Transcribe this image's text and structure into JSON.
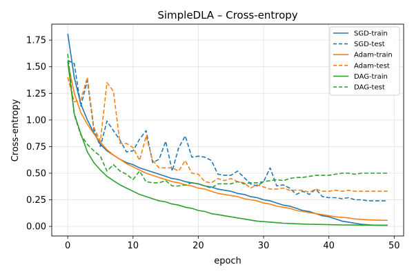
{
  "chart_data": {
    "type": "line",
    "title": "SimpleDLA – Cross-entropy",
    "xlabel": "epoch",
    "ylabel": "Cross-entropy",
    "xlim": [
      -2.45,
      51.45
    ],
    "ylim": [
      -0.09,
      1.9
    ],
    "xticks": [
      0,
      10,
      20,
      30,
      40,
      50
    ],
    "yticks": [
      0.0,
      0.25,
      0.5,
      0.75,
      1.0,
      1.25,
      1.5,
      1.75
    ],
    "ytick_labels": [
      "0.00",
      "0.25",
      "0.50",
      "0.75",
      "1.00",
      "1.25",
      "1.50",
      "1.75"
    ],
    "grid": true,
    "legend_position": "top-right",
    "x": [
      0,
      1,
      2,
      3,
      4,
      5,
      6,
      7,
      8,
      9,
      10,
      11,
      12,
      13,
      14,
      15,
      16,
      17,
      18,
      19,
      20,
      21,
      22,
      23,
      24,
      25,
      26,
      27,
      28,
      29,
      30,
      31,
      32,
      33,
      34,
      35,
      36,
      37,
      38,
      39,
      40,
      41,
      42,
      43,
      44,
      45,
      46,
      47,
      48,
      49
    ],
    "series": [
      {
        "name": "SGD-train",
        "color": "#1f77b4",
        "dash": "solid",
        "values": [
          1.81,
          1.4,
          1.15,
          1.0,
          0.88,
          0.77,
          0.71,
          0.67,
          0.63,
          0.6,
          0.58,
          0.55,
          0.53,
          0.51,
          0.49,
          0.47,
          0.45,
          0.44,
          0.42,
          0.41,
          0.4,
          0.38,
          0.37,
          0.35,
          0.34,
          0.33,
          0.31,
          0.3,
          0.28,
          0.27,
          0.25,
          0.24,
          0.22,
          0.2,
          0.19,
          0.17,
          0.15,
          0.14,
          0.12,
          0.1,
          0.09,
          0.07,
          0.05,
          0.04,
          0.03,
          0.02,
          0.015,
          0.012,
          0.01,
          0.01
        ]
      },
      {
        "name": "SGD-test",
        "color": "#1f77b4",
        "dash": "dashed",
        "values": [
          1.56,
          1.53,
          1.13,
          1.37,
          0.91,
          0.75,
          0.99,
          0.9,
          0.81,
          0.7,
          0.71,
          0.82,
          0.9,
          0.6,
          0.63,
          0.8,
          0.52,
          0.74,
          0.85,
          0.65,
          0.66,
          0.65,
          0.62,
          0.49,
          0.48,
          0.48,
          0.52,
          0.46,
          0.4,
          0.38,
          0.42,
          0.55,
          0.38,
          0.39,
          0.36,
          0.3,
          0.33,
          0.3,
          0.35,
          0.28,
          0.27,
          0.27,
          0.26,
          0.27,
          0.25,
          0.25,
          0.24,
          0.24,
          0.24,
          0.24
        ]
      },
      {
        "name": "Adam-train",
        "color": "#ff7f0e",
        "dash": "solid",
        "values": [
          1.55,
          1.25,
          1.07,
          0.96,
          0.87,
          0.79,
          0.72,
          0.67,
          0.63,
          0.59,
          0.56,
          0.53,
          0.5,
          0.48,
          0.46,
          0.44,
          0.42,
          0.41,
          0.39,
          0.38,
          0.36,
          0.35,
          0.33,
          0.31,
          0.3,
          0.29,
          0.28,
          0.26,
          0.25,
          0.24,
          0.22,
          0.21,
          0.19,
          0.18,
          0.17,
          0.15,
          0.14,
          0.13,
          0.12,
          0.11,
          0.1,
          0.09,
          0.085,
          0.08,
          0.07,
          0.065,
          0.062,
          0.06,
          0.058,
          0.057
        ]
      },
      {
        "name": "Adam-test",
        "color": "#ff7f0e",
        "dash": "dashed",
        "values": [
          1.4,
          1.17,
          1.19,
          1.4,
          0.93,
          0.8,
          1.35,
          1.27,
          0.78,
          0.78,
          0.74,
          0.62,
          0.85,
          0.62,
          0.55,
          0.55,
          0.55,
          0.52,
          0.62,
          0.5,
          0.49,
          0.42,
          0.41,
          0.45,
          0.43,
          0.45,
          0.42,
          0.41,
          0.36,
          0.39,
          0.37,
          0.35,
          0.35,
          0.36,
          0.34,
          0.34,
          0.34,
          0.32,
          0.35,
          0.33,
          0.33,
          0.34,
          0.33,
          0.34,
          0.33,
          0.33,
          0.33,
          0.33,
          0.33,
          0.33
        ]
      },
      {
        "name": "DAG-train",
        "color": "#2ca02c",
        "dash": "solid",
        "values": [
          1.55,
          1.06,
          0.87,
          0.7,
          0.6,
          0.53,
          0.47,
          0.43,
          0.39,
          0.36,
          0.33,
          0.3,
          0.28,
          0.26,
          0.24,
          0.23,
          0.21,
          0.2,
          0.18,
          0.17,
          0.15,
          0.14,
          0.12,
          0.11,
          0.1,
          0.09,
          0.08,
          0.07,
          0.06,
          0.05,
          0.045,
          0.04,
          0.035,
          0.03,
          0.028,
          0.025,
          0.022,
          0.02,
          0.019,
          0.018,
          0.016,
          0.015,
          0.014,
          0.013,
          0.013,
          0.012,
          0.012,
          0.011,
          0.011,
          0.011
        ]
      },
      {
        "name": "DAG-test",
        "color": "#2ca02c",
        "dash": "dashed",
        "values": [
          1.62,
          1.05,
          0.86,
          0.77,
          0.71,
          0.66,
          0.52,
          0.58,
          0.52,
          0.49,
          0.44,
          0.52,
          0.42,
          0.41,
          0.41,
          0.43,
          0.38,
          0.38,
          0.39,
          0.41,
          0.4,
          0.38,
          0.36,
          0.4,
          0.4,
          0.4,
          0.42,
          0.4,
          0.41,
          0.41,
          0.42,
          0.43,
          0.44,
          0.43,
          0.45,
          0.46,
          0.46,
          0.47,
          0.48,
          0.48,
          0.48,
          0.49,
          0.5,
          0.5,
          0.49,
          0.5,
          0.5,
          0.5,
          0.5,
          0.5
        ]
      }
    ]
  }
}
